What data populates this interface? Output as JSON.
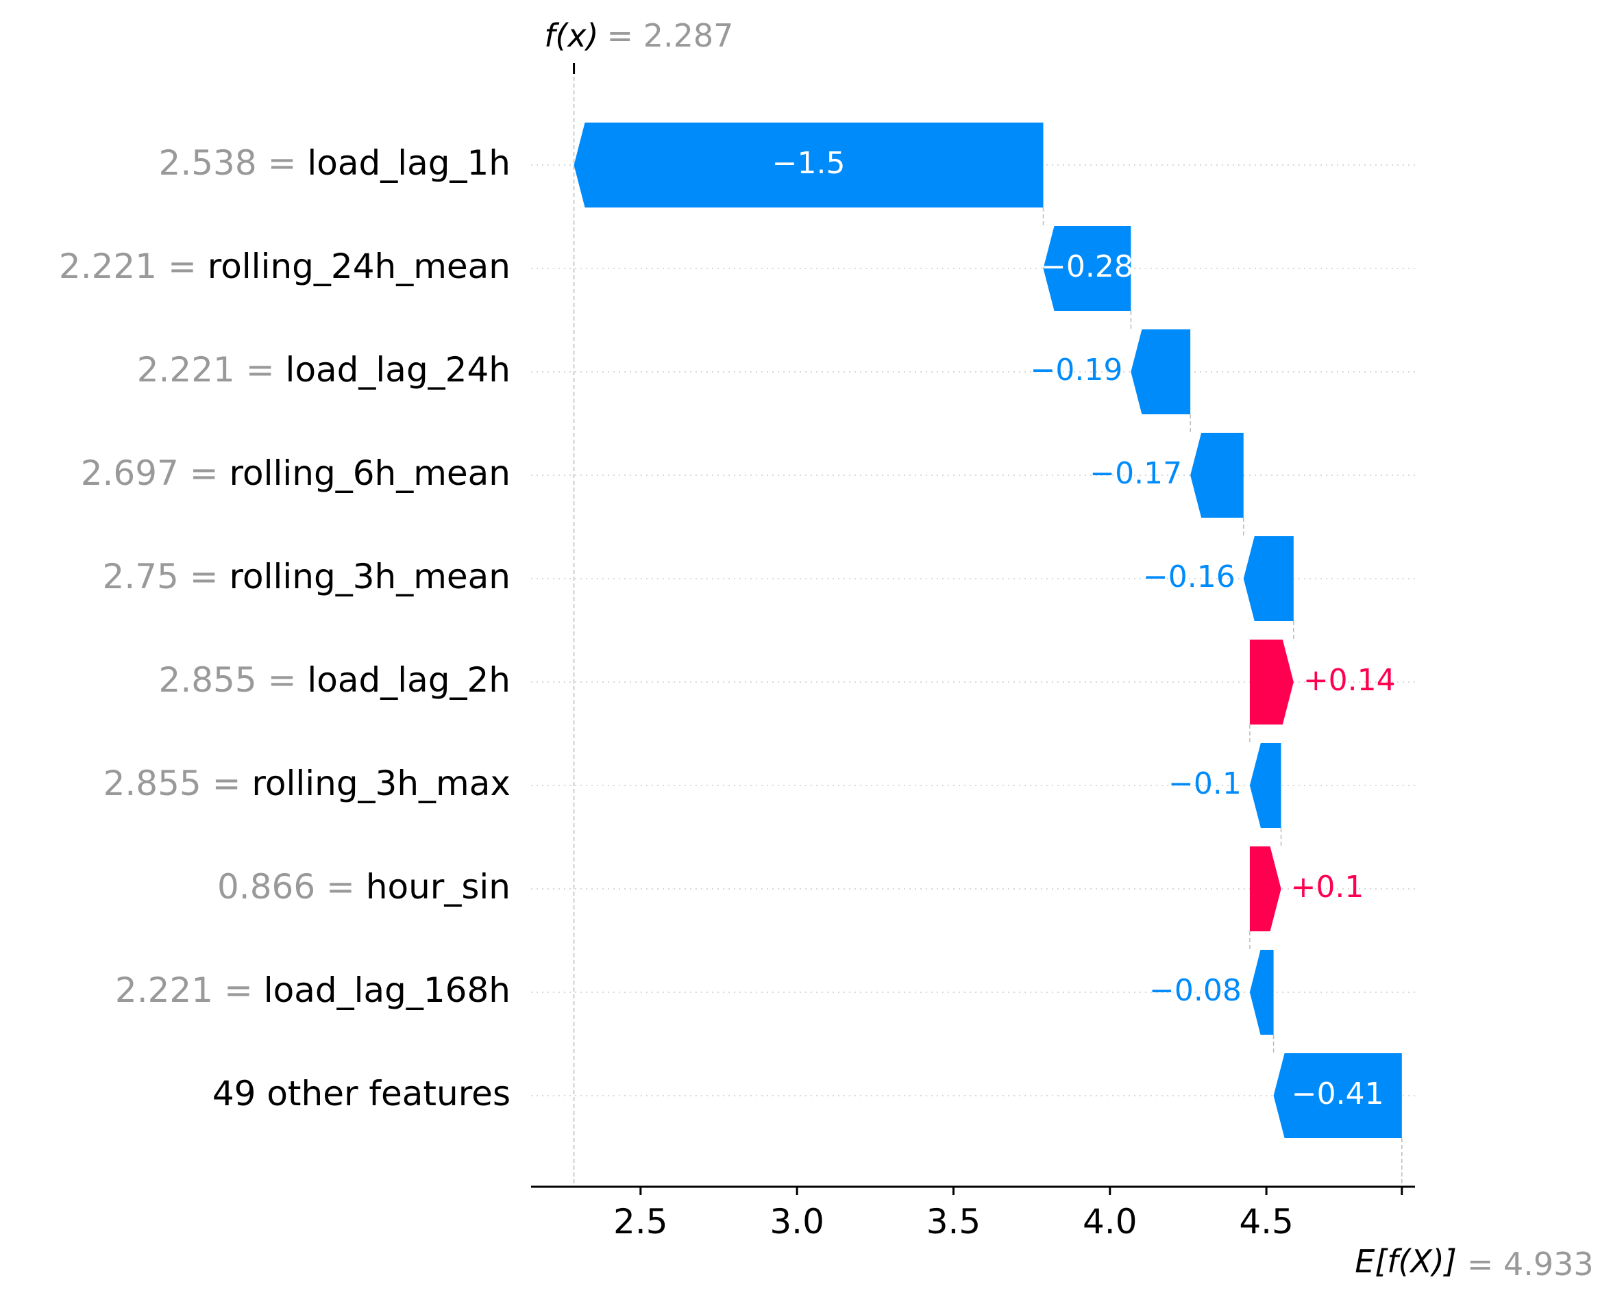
{
  "chart_data": {
    "type": "waterfall",
    "fx": {
      "label_italic": "f(x)",
      "value_text": "= 2.287",
      "value": 2.287
    },
    "ex": {
      "label_italic": "E[f(X)]",
      "value_text": "= 4.933",
      "value": 4.933
    },
    "xlim": [
      2.15,
      4.975
    ],
    "xticks": [
      {
        "value": 2.5,
        "label": "2.5"
      },
      {
        "value": 3.0,
        "label": "3.0"
      },
      {
        "value": 3.5,
        "label": "3.5"
      },
      {
        "value": 4.0,
        "label": "4.0"
      },
      {
        "value": 4.5,
        "label": "4.5"
      }
    ],
    "colors": {
      "negative": "#008bfb",
      "positive": "#ff0051",
      "gray": "#999999"
    },
    "features": [
      {
        "value_text": "2.538 =",
        "name": "load_lag_1h",
        "start": 3.787,
        "end": 2.287,
        "label": "−1.5",
        "label_inside": true
      },
      {
        "value_text": "2.221 =",
        "name": "rolling_24h_mean",
        "start": 4.067,
        "end": 3.787,
        "label": "−0.28",
        "label_inside": true
      },
      {
        "value_text": "2.221 =",
        "name": "load_lag_24h",
        "start": 4.257,
        "end": 4.067,
        "label": "−0.19",
        "label_inside": false
      },
      {
        "value_text": "2.697 =",
        "name": "rolling_6h_mean",
        "start": 4.427,
        "end": 4.257,
        "label": "−0.17",
        "label_inside": false
      },
      {
        "value_text": "2.75 =",
        "name": "rolling_3h_mean",
        "start": 4.587,
        "end": 4.427,
        "label": "−0.16",
        "label_inside": false
      },
      {
        "value_text": "2.855 =",
        "name": "load_lag_2h",
        "start": 4.447,
        "end": 4.587,
        "label": "+0.14",
        "label_inside": false
      },
      {
        "value_text": "2.855 =",
        "name": "rolling_3h_max",
        "start": 4.547,
        "end": 4.447,
        "label": "−0.1",
        "label_inside": false
      },
      {
        "value_text": "0.866 =",
        "name": "hour_sin",
        "start": 4.447,
        "end": 4.547,
        "label": "+0.1",
        "label_inside": false
      },
      {
        "value_text": "2.221 =",
        "name": "load_lag_168h",
        "start": 4.523,
        "end": 4.447,
        "label": "−0.08",
        "label_inside": false
      },
      {
        "value_text": "",
        "name": "49 other features",
        "start": 4.933,
        "end": 4.523,
        "label": "−0.41",
        "label_inside": true
      }
    ]
  }
}
